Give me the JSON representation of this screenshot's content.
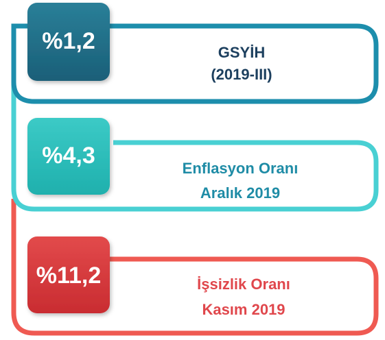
{
  "items": [
    {
      "value": "%1,2",
      "title": "GSYİH",
      "subtitle": "(2019-III)"
    },
    {
      "value": "%4,3",
      "title": "Enflasyon Oranı",
      "subtitle": "Aralık 2019"
    },
    {
      "value": "%11,2",
      "title": "İşsizlik Oranı",
      "subtitle": "Kasım 2019"
    }
  ]
}
